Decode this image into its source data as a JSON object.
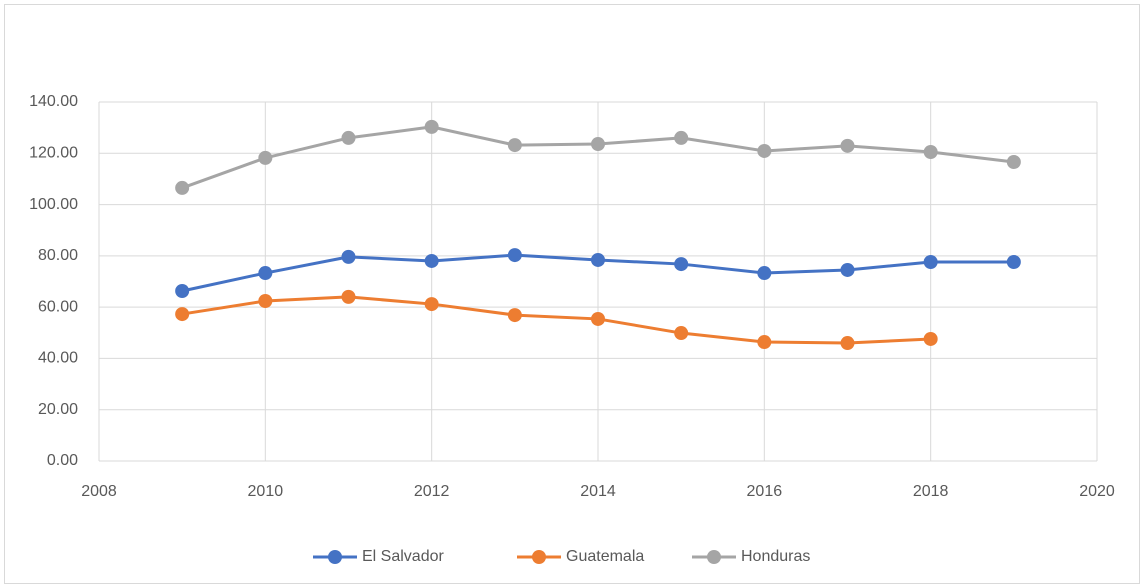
{
  "chart_data": {
    "type": "line",
    "x": [
      2009,
      2010,
      2011,
      2012,
      2013,
      2014,
      2015,
      2016,
      2017,
      2018,
      2019
    ],
    "series": [
      {
        "name": "El Salvador",
        "color": "#4472c4",
        "values": [
          66.3,
          73.3,
          79.6,
          78.0,
          80.3,
          78.4,
          76.8,
          73.3,
          74.5,
          77.6,
          77.6
        ]
      },
      {
        "name": "Guatemala",
        "color": "#ed7d31",
        "values": [
          57.3,
          62.4,
          64.0,
          61.2,
          56.9,
          55.4,
          49.9,
          46.4,
          46.0,
          47.6,
          null
        ]
      },
      {
        "name": "Honduras",
        "color": "#a5a5a5",
        "values": [
          106.5,
          118.2,
          126.0,
          130.3,
          123.2,
          123.6,
          126.0,
          120.9,
          122.9,
          120.5,
          116.6
        ]
      }
    ],
    "xlim": [
      2008,
      2020
    ],
    "xticks": [
      2008,
      2010,
      2012,
      2014,
      2016,
      2018,
      2020
    ],
    "ylim": [
      0,
      140
    ],
    "yticks": [
      {
        "value": 0,
        "label": "0.00"
      },
      {
        "value": 20,
        "label": "20.00"
      },
      {
        "value": 40,
        "label": "40.00"
      },
      {
        "value": 60,
        "label": "60.00"
      },
      {
        "value": 80,
        "label": "80.00"
      },
      {
        "value": 100,
        "label": "100.00"
      },
      {
        "value": 120,
        "label": "120.00"
      },
      {
        "value": 140,
        "label": "140.00"
      }
    ],
    "grid": true,
    "legend": "bottom"
  }
}
